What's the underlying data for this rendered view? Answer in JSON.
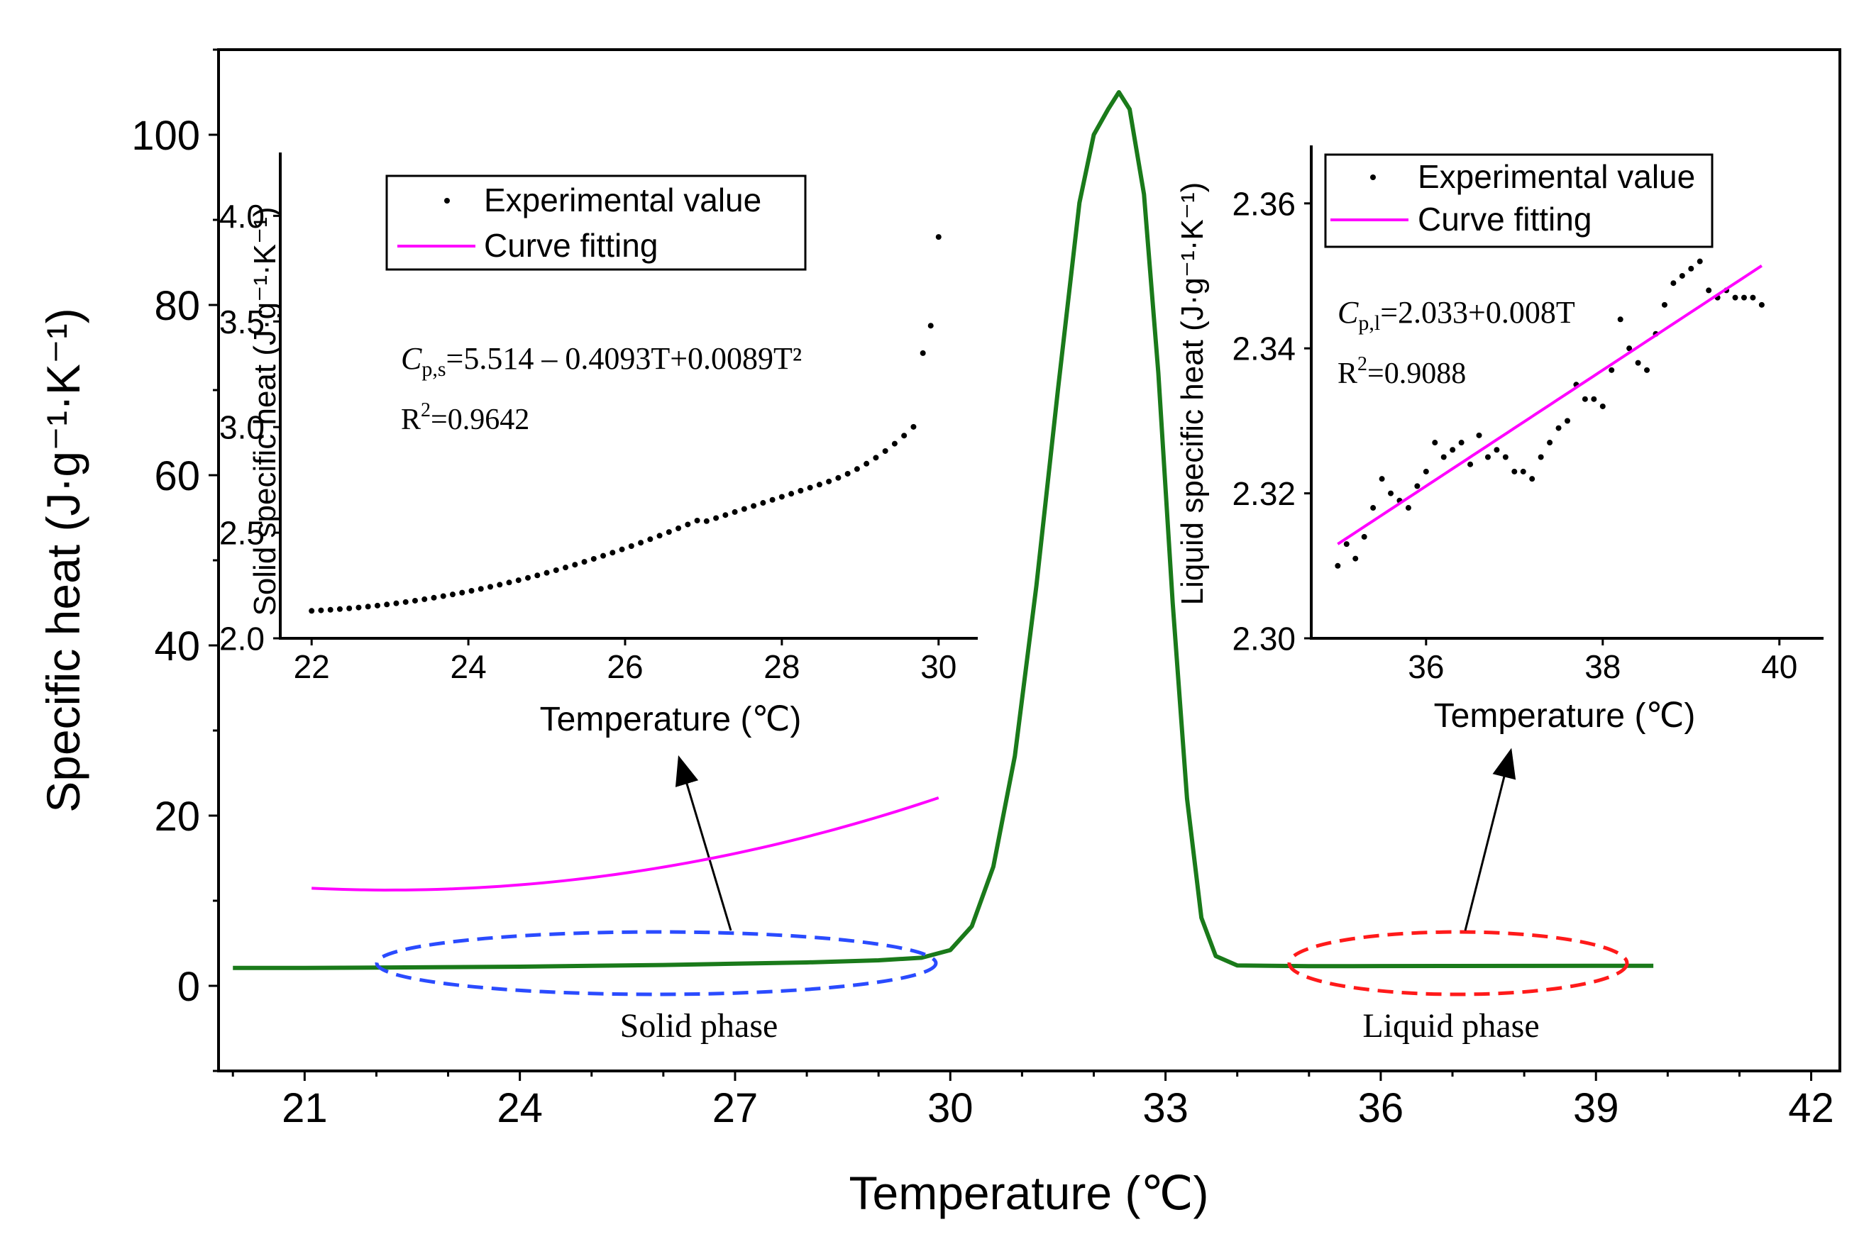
{
  "chart_data": [
    {
      "id": "main",
      "type": "line",
      "xlabel": "Temperature (℃)",
      "ylabel": "Specific heat (J·g⁻¹·K⁻¹)",
      "xlim": [
        19.8,
        42.4
      ],
      "ylim": [
        -10,
        110
      ],
      "xticks": [
        21,
        24,
        27,
        30,
        33,
        36,
        39,
        42
      ],
      "yticks": [
        0,
        20,
        40,
        60,
        80,
        100
      ],
      "series": [
        {
          "color": "#1a7a1a",
          "x": [
            20.0,
            21.0,
            22.0,
            23.0,
            24.0,
            25.0,
            26.0,
            27.0,
            28.0,
            29.0,
            29.6,
            30.0,
            30.3,
            30.6,
            30.9,
            31.2,
            31.5,
            31.8,
            32.0,
            32.2,
            32.35,
            32.5,
            32.7,
            32.9,
            33.1,
            33.3,
            33.5,
            33.7,
            34.0,
            35.0,
            36.0,
            37.0,
            38.0,
            39.0,
            39.8
          ],
          "y": [
            2.1,
            2.1,
            2.15,
            2.2,
            2.25,
            2.35,
            2.45,
            2.6,
            2.75,
            3.0,
            3.3,
            4.2,
            7.0,
            14.0,
            27.0,
            47.0,
            70.0,
            92.0,
            100.0,
            103.0,
            105.0,
            103.0,
            93.0,
            72.0,
            45.0,
            22.0,
            8.0,
            3.5,
            2.4,
            2.31,
            2.32,
            2.33,
            2.34,
            2.35,
            2.35
          ]
        }
      ],
      "annotations": [
        "Solid phase",
        "Liquid phase"
      ]
    },
    {
      "id": "inset-solid",
      "type": "scatter",
      "xlabel": "Temperature (℃)",
      "ylabel": "Solid specific heat (J·g⁻¹·K⁻¹)",
      "xlim": [
        21.6,
        30.5
      ],
      "ylim": [
        2.0,
        4.3
      ],
      "xticks": [
        22,
        24,
        26,
        28,
        30
      ],
      "yticks": [
        2.0,
        2.5,
        3.0,
        3.5,
        4.0
      ],
      "yticklabels": [
        "2.0",
        "2.5",
        "3.0",
        "3.5",
        "4.0"
      ],
      "legend": [
        "Experimental value",
        "Curve fitting"
      ],
      "equation": {
        "var": "C",
        "sub": "p,s",
        "rhs": "=5.514 – 0.4093T+0.0089T²"
      },
      "r2": {
        "r": "R",
        "sup": "2",
        "value": "=0.9642"
      },
      "series": [
        {
          "name": "Experimental value",
          "color": "#000000",
          "x_start": 22.0,
          "x_end": 29.7,
          "step": 0.12
        },
        {
          "name": "Curve fitting",
          "color": "#ff00ff",
          "coef": [
            5.514,
            -0.4093,
            0.0089
          ],
          "x_range": [
            22.0,
            30.0
          ]
        }
      ],
      "tail_points": {
        "x": [
          29.8,
          29.9,
          30.0
        ],
        "y": [
          3.35,
          3.48,
          3.9
        ]
      }
    },
    {
      "id": "inset-liquid",
      "type": "scatter",
      "xlabel": "Temperature (℃)",
      "ylabel": "Liquid specific heat (J·g⁻¹·K⁻¹)",
      "xlim": [
        34.7,
        40.5
      ],
      "ylim": [
        2.3,
        2.368
      ],
      "xticks": [
        36,
        38,
        40
      ],
      "yticks": [
        2.3,
        2.32,
        2.34,
        2.36
      ],
      "yticklabels": [
        "2.30",
        "2.32",
        "2.34",
        "2.36"
      ],
      "legend": [
        "Experimental value",
        "Curve fitting"
      ],
      "equation": {
        "var": "C",
        "sub": "p,l",
        "rhs": "=2.033+0.008T"
      },
      "r2": {
        "r": "R",
        "sup": "2",
        "value": "=0.9088"
      },
      "series": [
        {
          "name": "Experimental value",
          "color": "#000000",
          "x": [
            35.0,
            35.1,
            35.2,
            35.3,
            35.4,
            35.5,
            35.6,
            35.7,
            35.8,
            35.9,
            36.0,
            36.1,
            36.2,
            36.3,
            36.4,
            36.5,
            36.6,
            36.7,
            36.8,
            36.9,
            37.0,
            37.1,
            37.2,
            37.3,
            37.4,
            37.5,
            37.6,
            37.7,
            37.8,
            37.9,
            38.0,
            38.1,
            38.2,
            38.3,
            38.4,
            38.5,
            38.6,
            38.7,
            38.8,
            38.9,
            39.0,
            39.1,
            39.2,
            39.3,
            39.4,
            39.5,
            39.6,
            39.7,
            39.8
          ],
          "y": [
            2.31,
            2.313,
            2.311,
            2.314,
            2.318,
            2.322,
            2.32,
            2.319,
            2.318,
            2.321,
            2.323,
            2.327,
            2.325,
            2.326,
            2.327,
            2.324,
            2.328,
            2.325,
            2.326,
            2.325,
            2.323,
            2.323,
            2.322,
            2.325,
            2.327,
            2.329,
            2.33,
            2.335,
            2.333,
            2.333,
            2.332,
            2.337,
            2.344,
            2.34,
            2.338,
            2.337,
            2.342,
            2.346,
            2.349,
            2.35,
            2.351,
            2.352,
            2.348,
            2.347,
            2.348,
            2.347,
            2.347,
            2.347,
            2.346
          ]
        },
        {
          "name": "Curve fitting",
          "color": "#ff00ff",
          "coef": [
            2.033,
            0.008
          ],
          "x_range": [
            35.0,
            39.8
          ]
        }
      ]
    }
  ]
}
